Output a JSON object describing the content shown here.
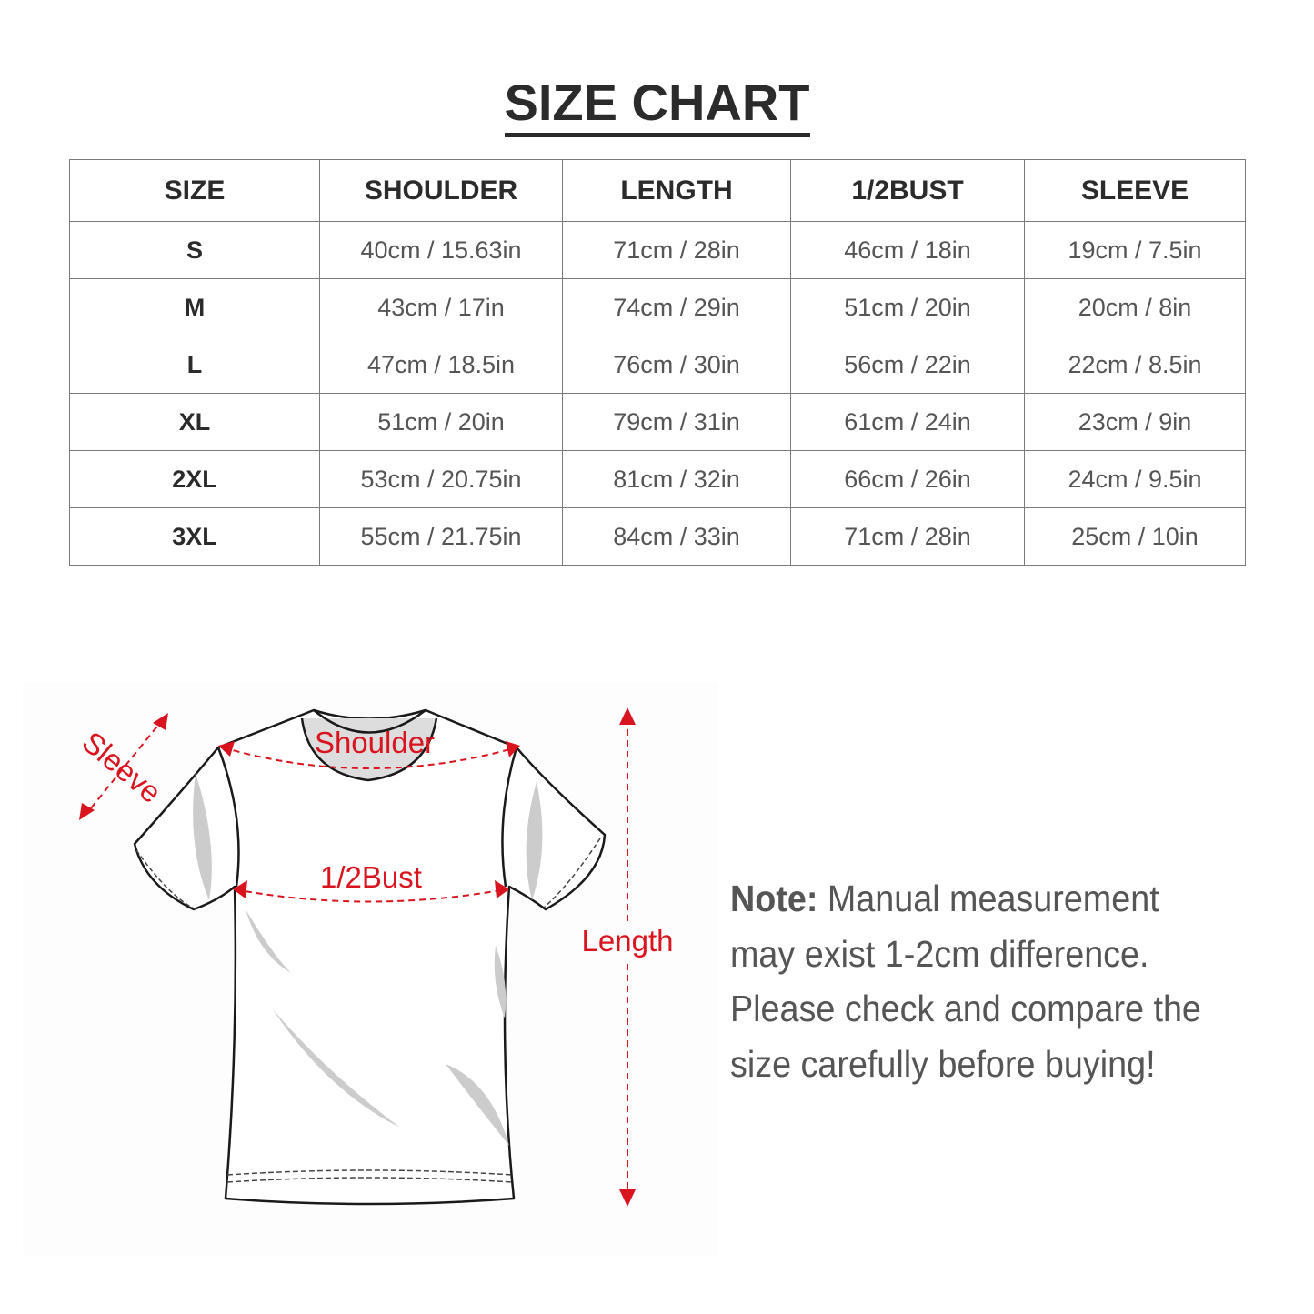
{
  "title": "SIZE CHART",
  "table": {
    "headers": [
      "SIZE",
      "SHOULDER",
      "LENGTH",
      "1/2BUST",
      "SLEEVE"
    ],
    "rows": [
      [
        "S",
        "40cm / 15.63in",
        "71cm / 28in",
        "46cm / 18in",
        "19cm / 7.5in"
      ],
      [
        "M",
        "43cm / 17in",
        "74cm / 29in",
        "51cm / 20in",
        "20cm / 8in"
      ],
      [
        "L",
        "47cm / 18.5in",
        "76cm / 30in",
        "56cm / 22in",
        "22cm / 8.5in"
      ],
      [
        "XL",
        "51cm / 20in",
        "79cm / 31in",
        "61cm / 24in",
        "23cm / 9in"
      ],
      [
        "2XL",
        "53cm / 20.75in",
        "81cm / 32in",
        "66cm / 26in",
        "24cm / 9.5in"
      ],
      [
        "3XL",
        "55cm / 21.75in",
        "84cm / 33in",
        "71cm / 28in",
        "25cm / 10in"
      ]
    ]
  },
  "diagram": {
    "labels": {
      "sleeve": "Sleeve",
      "shoulder": "Shoulder",
      "bust": "1/2Bust",
      "length": "Length"
    },
    "accent_color": "#d9141e"
  },
  "note": {
    "label": "Note:",
    "text": " Manual measurement may exist 1-2cm difference. Please check and compare the size carefully before buying!"
  }
}
